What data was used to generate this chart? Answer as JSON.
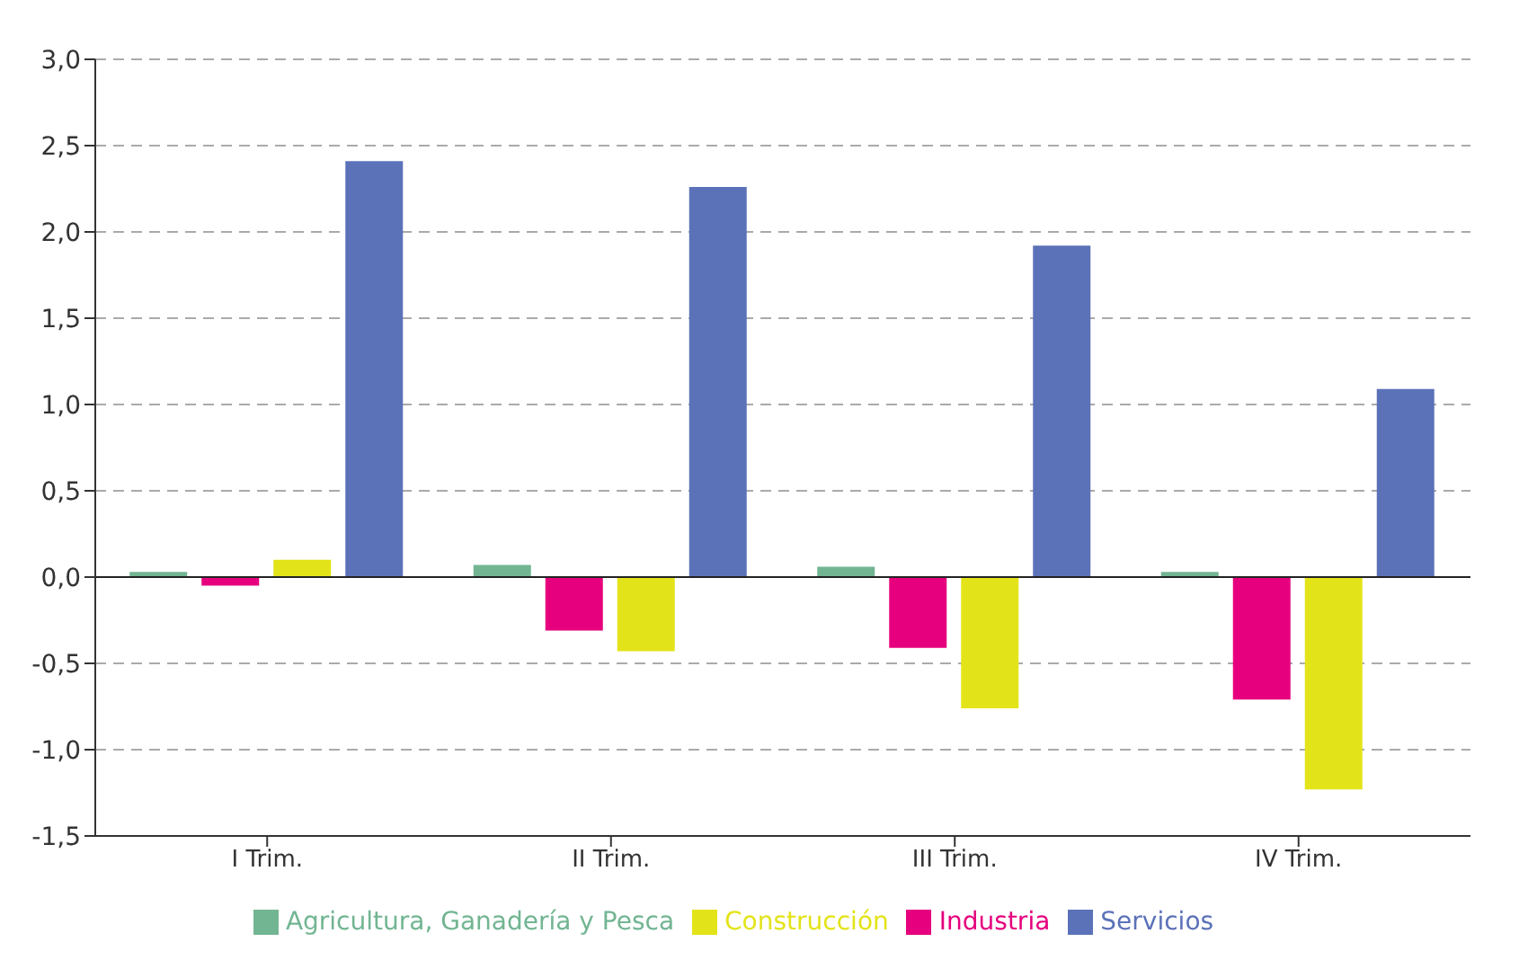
{
  "chart_data": {
    "type": "bar",
    "categories": [
      "I Trim.",
      "II Trim.",
      "III Trim.",
      "IV Trim."
    ],
    "series": [
      {
        "name": "Agricultura, Ganadería y Pesca",
        "color": "#72b592",
        "values": [
          0.03,
          0.07,
          0.06,
          0.03
        ]
      },
      {
        "name": "Industria",
        "color": "#e6007e",
        "values": [
          -0.05,
          -0.31,
          -0.41,
          -0.71
        ]
      },
      {
        "name": "Construcción",
        "color": "#e3e31a",
        "values": [
          0.1,
          -0.43,
          -0.76,
          -1.23
        ]
      },
      {
        "name": "Servicios",
        "color": "#5b72b8",
        "values": [
          2.41,
          2.26,
          1.92,
          1.09
        ]
      }
    ],
    "ylim": [
      -1.5,
      3.0
    ],
    "yticks": [
      {
        "value": -1.5,
        "label": "-1,5"
      },
      {
        "value": -1.0,
        "label": "-1,0"
      },
      {
        "value": -0.5,
        "label": "-0,5"
      },
      {
        "value": 0,
        "label": "0,0"
      },
      {
        "value": 0.5,
        "label": "0,5"
      },
      {
        "value": 1.0,
        "label": "1,0"
      },
      {
        "value": 1.5,
        "label": "1,5"
      },
      {
        "value": 2.0,
        "label": "2,0"
      },
      {
        "value": 2.5,
        "label": "2,5"
      },
      {
        "value": 3.0,
        "label": "3,0"
      }
    ],
    "grid": "y",
    "legend": "bottom"
  }
}
